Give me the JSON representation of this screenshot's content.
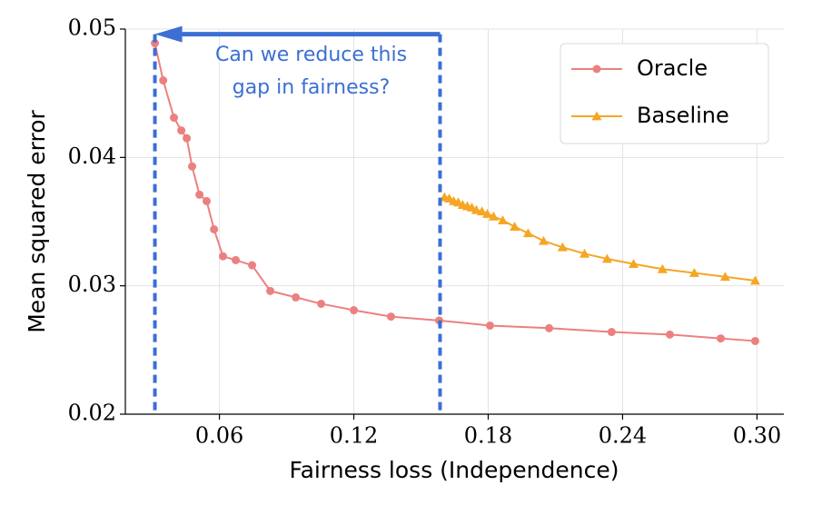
{
  "chart_data": {
    "type": "line",
    "xlabel": "Fairness loss (Independence)",
    "ylabel": "Mean squared error",
    "xlim": [
      0.018,
      0.312
    ],
    "ylim": [
      0.02,
      0.05
    ],
    "xticks": [
      0.06,
      0.12,
      0.18,
      0.24,
      {
        "value": 0.3,
        "label": "0.30"
      }
    ],
    "yticks": [
      0.02,
      0.03,
      0.04,
      0.05
    ],
    "grid": true,
    "legend": "upper right",
    "annotation": [
      "Can we reduce this",
      "gap in fairness?"
    ],
    "gap": {
      "x": [
        0.0312,
        0.1585
      ],
      "y": 0.0496,
      "color": "#3b6fd4"
    },
    "series": [
      {
        "name": "Oracle",
        "color": "#ec8080",
        "marker": "circle",
        "x": [
          0.0312,
          0.0349,
          0.0397,
          0.043,
          0.0454,
          0.0478,
          0.0511,
          0.0543,
          0.0576,
          0.0616,
          0.0673,
          0.0746,
          0.0827,
          0.0941,
          0.1054,
          0.12,
          0.1366,
          0.1581,
          0.1808,
          0.2072,
          0.2351,
          0.2611,
          0.2838,
          0.2992
        ],
        "values": [
          0.0489,
          0.046,
          0.0431,
          0.0421,
          0.0415,
          0.0393,
          0.0371,
          0.0366,
          0.0344,
          0.0323,
          0.032,
          0.0316,
          0.0296,
          0.0291,
          0.0286,
          0.0281,
          0.0276,
          0.0273,
          0.0269,
          0.0267,
          0.0264,
          0.0262,
          0.0259,
          0.0257
        ]
      },
      {
        "name": "Baseline",
        "color": "#f5a623",
        "marker": "triangle",
        "x": [
          0.1605,
          0.1626,
          0.1646,
          0.1666,
          0.1686,
          0.1707,
          0.1727,
          0.1747,
          0.1772,
          0.1796,
          0.1824,
          0.1865,
          0.1918,
          0.1978,
          0.2047,
          0.2132,
          0.223,
          0.2331,
          0.2449,
          0.2578,
          0.272,
          0.2858,
          0.2992
        ],
        "values": [
          0.0369,
          0.0368,
          0.0366,
          0.0365,
          0.0363,
          0.0362,
          0.0361,
          0.0359,
          0.0358,
          0.0356,
          0.0354,
          0.0351,
          0.0346,
          0.0341,
          0.0335,
          0.033,
          0.0325,
          0.0321,
          0.0317,
          0.0313,
          0.031,
          0.0307,
          0.0304
        ]
      }
    ]
  }
}
